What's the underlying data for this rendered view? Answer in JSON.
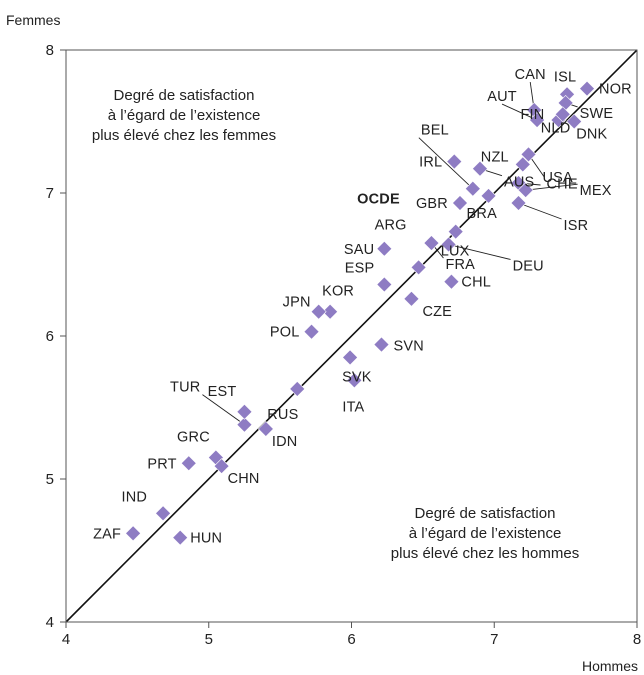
{
  "chart_data": {
    "type": "scatter",
    "xlabel": "Hommes",
    "ylabel": "Femmes",
    "xlim": [
      4,
      8
    ],
    "ylim": [
      4,
      8
    ],
    "x_ticks": [
      "4",
      "5",
      "6",
      "7",
      "8"
    ],
    "y_ticks": [
      "4",
      "5",
      "6",
      "7",
      "8"
    ],
    "grid": false,
    "reference_line": "y = x",
    "marker_color": "#8e7cc3",
    "annotations": {
      "upper_left": [
        "Degré de satisfaction",
        "à l’égard de l’existence",
        "plus élevé chez les femmes"
      ],
      "lower_right": [
        "Degré de satisfaction",
        "à l’égard de l’existence",
        "plus élevé chez les hommes"
      ]
    },
    "points": [
      {
        "label": "NOR",
        "x": 7.65,
        "y": 7.73
      },
      {
        "label": "ISL",
        "x": 7.51,
        "y": 7.69
      },
      {
        "label": "CAN",
        "x": 7.28,
        "y": 7.58
      },
      {
        "label": "AUT",
        "x": 7.3,
        "y": 7.51
      },
      {
        "label": "FIN",
        "x": 7.45,
        "y": 7.51
      },
      {
        "label": "SWE",
        "x": 7.5,
        "y": 7.63
      },
      {
        "label": "DNK",
        "x": 7.56,
        "y": 7.5
      },
      {
        "label": "NLD",
        "x": 7.48,
        "y": 7.55
      },
      {
        "label": "CHE",
        "x": 7.24,
        "y": 7.27
      },
      {
        "label": "NZL",
        "x": 7.2,
        "y": 7.2
      },
      {
        "label": "AUS",
        "x": 6.9,
        "y": 7.17
      },
      {
        "label": "IRL",
        "x": 6.72,
        "y": 7.22
      },
      {
        "label": "USA",
        "x": 7.17,
        "y": 7.07
      },
      {
        "label": "MEX",
        "x": 7.22,
        "y": 7.02
      },
      {
        "label": "ISR",
        "x": 7.17,
        "y": 6.93
      },
      {
        "label": "BRA",
        "x": 6.96,
        "y": 6.98
      },
      {
        "label": "BEL",
        "x": 6.85,
        "y": 7.03
      },
      {
        "label": "GBR",
        "x": 6.76,
        "y": 6.93
      },
      {
        "label": "LUX",
        "x": 6.73,
        "y": 6.73
      },
      {
        "label": "DEU",
        "x": 6.68,
        "y": 6.64
      },
      {
        "label": "FRA",
        "x": 6.56,
        "y": 6.65
      },
      {
        "label": "OCDE",
        "x": 6.57,
        "y": 6.66
      },
      {
        "label": "ARG",
        "x": 6.47,
        "y": 6.48
      },
      {
        "label": "CHL",
        "x": 6.7,
        "y": 6.38
      },
      {
        "label": "SAU",
        "x": 6.23,
        "y": 6.61
      },
      {
        "label": "ESP",
        "x": 6.23,
        "y": 6.36
      },
      {
        "label": "CZE",
        "x": 6.42,
        "y": 6.26
      },
      {
        "label": "KOR",
        "x": 5.85,
        "y": 6.17
      },
      {
        "label": "JPN",
        "x": 5.77,
        "y": 6.17
      },
      {
        "label": "POL",
        "x": 5.72,
        "y": 6.03
      },
      {
        "label": "SVN",
        "x": 6.21,
        "y": 5.94
      },
      {
        "label": "SVK",
        "x": 5.99,
        "y": 5.85
      },
      {
        "label": "ITA",
        "x": 6.02,
        "y": 5.69
      },
      {
        "label": "RUS",
        "x": 5.62,
        "y": 5.63
      },
      {
        "label": "TUR",
        "x": 5.25,
        "y": 5.38
      },
      {
        "label": "EST",
        "x": 5.25,
        "y": 5.47
      },
      {
        "label": "IDN",
        "x": 5.4,
        "y": 5.35
      },
      {
        "label": "GRC",
        "x": 5.05,
        "y": 5.15
      },
      {
        "label": "CHN",
        "x": 5.09,
        "y": 5.09
      },
      {
        "label": "PRT",
        "x": 4.86,
        "y": 5.11
      },
      {
        "label": "IND",
        "x": 4.68,
        "y": 4.76
      },
      {
        "label": "ZAF",
        "x": 4.47,
        "y": 4.62
      },
      {
        "label": "HUN",
        "x": 4.8,
        "y": 4.59
      }
    ]
  }
}
